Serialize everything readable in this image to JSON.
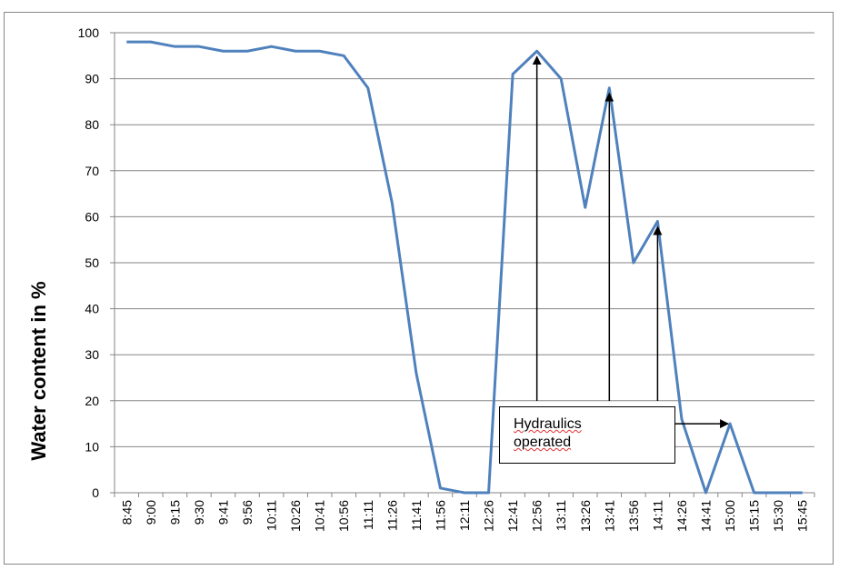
{
  "chart_data": {
    "type": "line",
    "title": "",
    "xlabel": "",
    "ylabel": "Water content in  %",
    "ylim": [
      0,
      100
    ],
    "yticks": [
      0,
      10,
      20,
      30,
      40,
      50,
      60,
      70,
      80,
      90,
      100
    ],
    "grid": true,
    "legend": "none",
    "categories": [
      "8:45",
      "9:00",
      "9:15",
      "9:30",
      "9:41",
      "9:56",
      "10:11",
      "10:26",
      "10:41",
      "10:56",
      "11:11",
      "11:26",
      "11:41",
      "11:56",
      "12:11",
      "12:26",
      "12:41",
      "12:56",
      "13:11",
      "13:26",
      "13:41",
      "13:56",
      "14:11",
      "14:26",
      "14:41",
      "15:00",
      "15:15",
      "15:30",
      "15:45"
    ],
    "series": [
      {
        "values": [
          98,
          98,
          97,
          97,
          96,
          96,
          97,
          96,
          96,
          95,
          88,
          63,
          26,
          1,
          0,
          0,
          91,
          96,
          90,
          62,
          88,
          50,
          59,
          16,
          0,
          15,
          0,
          0,
          0
        ]
      }
    ],
    "line_color": "#4f81bd",
    "annotation": {
      "line1": "Hydraulics",
      "line2": "operated",
      "arrow_targets": [
        "12:56",
        "13:41",
        "14:11",
        "15:00"
      ]
    }
  }
}
